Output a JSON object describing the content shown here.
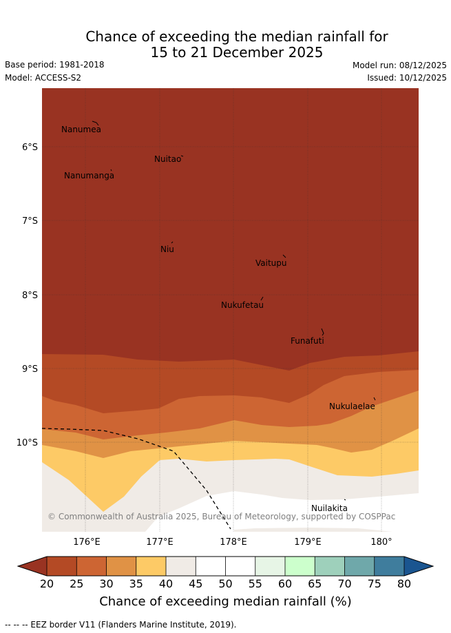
{
  "header": {
    "title_line1": "Chance of exceeding the median rainfall for",
    "title_line2": "15 to 21 December 2025",
    "base_period": "Base period: 1981-2018",
    "model": "Model: ACCESS-S2",
    "model_run": "Model run: 08/12/2025",
    "issued": "Issued: 10/12/2025"
  },
  "map": {
    "lat_labels": [
      "6°S",
      "7°S",
      "8°S",
      "9°S",
      "10°S"
    ],
    "lon_labels": [
      "176°E",
      "177°E",
      "178°E",
      "179°E",
      "180°"
    ],
    "places": [
      "Nanumea",
      "Nuitao",
      "Nanumanga",
      "Niu",
      "Vaitupu",
      "Nukufetau",
      "Funafuti",
      "Nukulaelae",
      "Nuilakita"
    ],
    "copyright": "© Commonwealth of Australia 2025, Bureau of Meteorology, supported by COSPPac",
    "colors": {
      "band_20_25": "#993322",
      "band_25_30": "#b44a25",
      "band_30_35": "#cd6533",
      "band_35_40": "#e09245",
      "band_40_45": "#fdca66",
      "band_45_50": "#f0ebe6",
      "band_50_55": "#ffffff"
    }
  },
  "colorbar": {
    "ticks": [
      "20",
      "25",
      "30",
      "35",
      "40",
      "45",
      "50",
      "55",
      "60",
      "65",
      "70",
      "75",
      "80"
    ],
    "colors": [
      "#993322",
      "#b44a25",
      "#cd6533",
      "#e09245",
      "#fdca66",
      "#f0ebe6",
      "#ffffff",
      "#ffffff",
      "#e7f5e6",
      "#ccffcc",
      "#9ed0bb",
      "#6fa8aa",
      "#3f7d9d",
      "#1a5590"
    ],
    "label": "Chance of exceeding median rainfall (%)"
  },
  "footer": {
    "eez_note": "--  --  -- EEZ border V11 (Flanders Marine Institute, 2019)."
  }
}
